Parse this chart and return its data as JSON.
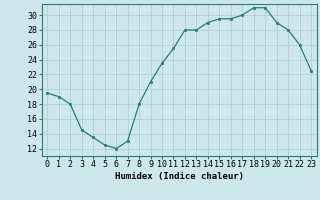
{
  "x": [
    0,
    1,
    2,
    3,
    4,
    5,
    6,
    7,
    8,
    9,
    10,
    11,
    12,
    13,
    14,
    15,
    16,
    17,
    18,
    19,
    20,
    21,
    22,
    23
  ],
  "y": [
    19.5,
    19.0,
    18.0,
    14.5,
    13.5,
    12.5,
    12.0,
    13.0,
    18.0,
    21.0,
    23.5,
    25.5,
    28.0,
    28.0,
    29.0,
    29.5,
    29.5,
    30.0,
    31.0,
    31.0,
    29.0,
    28.0,
    26.0,
    22.5
  ],
  "title": "",
  "xlabel": "Humidex (Indice chaleur)",
  "ylabel": "",
  "xlim": [
    -0.5,
    23.5
  ],
  "ylim": [
    11,
    31.5
  ],
  "yticks": [
    12,
    14,
    16,
    18,
    20,
    22,
    24,
    26,
    28,
    30
  ],
  "xticks": [
    0,
    1,
    2,
    3,
    4,
    5,
    6,
    7,
    8,
    9,
    10,
    11,
    12,
    13,
    14,
    15,
    16,
    17,
    18,
    19,
    20,
    21,
    22,
    23
  ],
  "line_color": "#2e7d6e",
  "marker_color": "#2e7d6e",
  "bg_color": "#cce8e8",
  "grid_color": "#aacccc",
  "axis_fontsize": 6.5,
  "tick_fontsize": 6.0
}
